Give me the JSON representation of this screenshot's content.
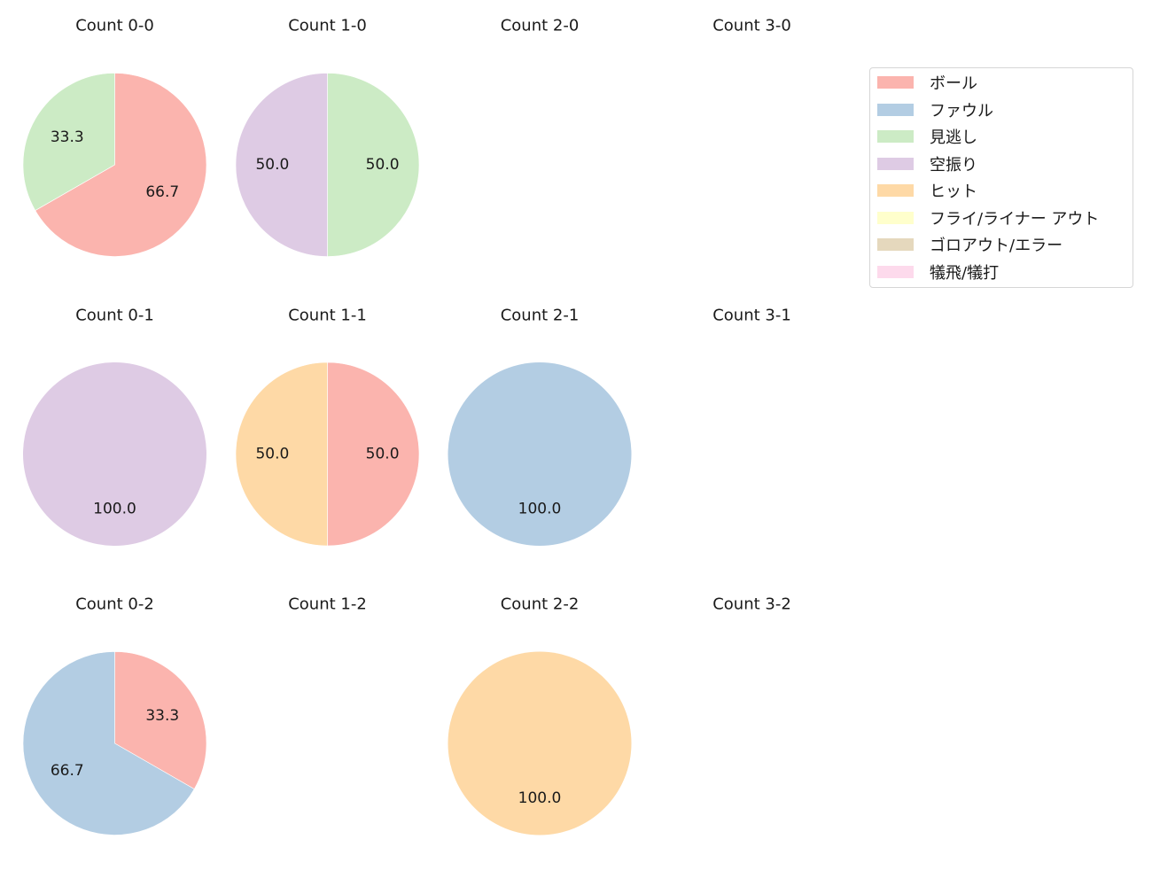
{
  "chart_data": {
    "type": "pie",
    "layout": {
      "rows": 3,
      "cols": 4,
      "direction": "clockwise",
      "start_angle": "top",
      "label_format": "%.1f"
    },
    "categories": [
      "ボール",
      "ファウル",
      "見逃し",
      "空振り",
      "ヒット",
      "フライ/ライナー アウト",
      "ゴロアウト/エラー",
      "犠飛/犠打"
    ],
    "colors": [
      "#fbb4ae",
      "#b3cde3",
      "#ccebc5",
      "#decbe4",
      "#fed9a6",
      "#ffffcc",
      "#e5d8bd",
      "#fddaec"
    ],
    "legend": {
      "position": "upper right",
      "entries": [
        "ボール",
        "ファウル",
        "見逃し",
        "空振り",
        "ヒット",
        "フライ/ライナー アウト",
        "ゴロアウト/エラー",
        "犠飛/犠打"
      ]
    },
    "subplots": [
      {
        "title": "Count 0-0",
        "row": 0,
        "col": 0,
        "slices": [
          {
            "category": "ボール",
            "value": 66.7
          },
          {
            "category": "見逃し",
            "value": 33.3
          }
        ]
      },
      {
        "title": "Count 1-0",
        "row": 0,
        "col": 1,
        "slices": [
          {
            "category": "見逃し",
            "value": 50.0
          },
          {
            "category": "空振り",
            "value": 50.0
          }
        ]
      },
      {
        "title": "Count 2-0",
        "row": 0,
        "col": 2,
        "slices": []
      },
      {
        "title": "Count 3-0",
        "row": 0,
        "col": 3,
        "slices": []
      },
      {
        "title": "Count 0-1",
        "row": 1,
        "col": 0,
        "slices": [
          {
            "category": "空振り",
            "value": 100.0
          }
        ]
      },
      {
        "title": "Count 1-1",
        "row": 1,
        "col": 1,
        "slices": [
          {
            "category": "ボール",
            "value": 50.0
          },
          {
            "category": "ヒット",
            "value": 50.0
          }
        ]
      },
      {
        "title": "Count 2-1",
        "row": 1,
        "col": 2,
        "slices": [
          {
            "category": "ファウル",
            "value": 100.0
          }
        ]
      },
      {
        "title": "Count 3-1",
        "row": 1,
        "col": 3,
        "slices": []
      },
      {
        "title": "Count 0-2",
        "row": 2,
        "col": 0,
        "slices": [
          {
            "category": "ボール",
            "value": 33.3
          },
          {
            "category": "ファウル",
            "value": 66.7
          }
        ]
      },
      {
        "title": "Count 1-2",
        "row": 2,
        "col": 1,
        "slices": []
      },
      {
        "title": "Count 2-2",
        "row": 2,
        "col": 2,
        "slices": [
          {
            "category": "ヒット",
            "value": 100.0
          }
        ]
      },
      {
        "title": "Count 3-2",
        "row": 2,
        "col": 3,
        "slices": []
      }
    ]
  }
}
